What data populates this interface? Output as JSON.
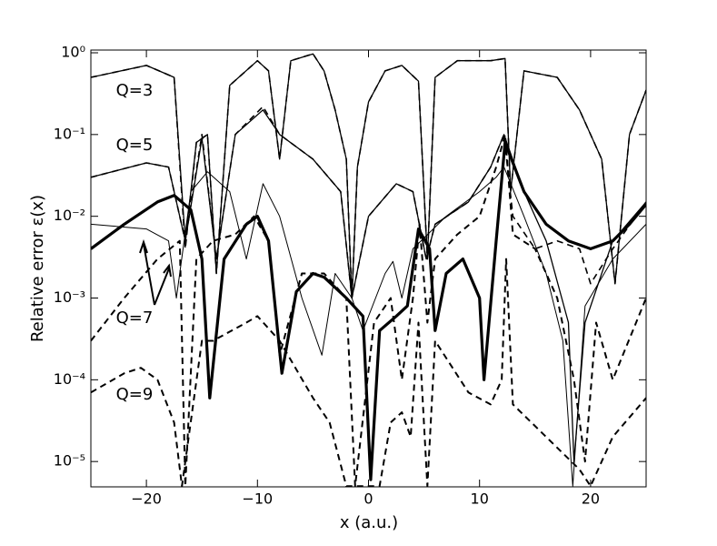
{
  "chart_data": {
    "type": "line",
    "x_label": "x (a.u.)",
    "y_label": "Relative error ε(x)",
    "annotations": [
      "Q=3",
      "Q=5",
      "Q=7",
      "Q=9"
    ],
    "xlim": [
      -25,
      25
    ],
    "xticks": [
      {
        "value": -20,
        "label": "−20"
      },
      {
        "value": -10,
        "label": "−10"
      },
      0,
      10,
      20
    ],
    "ylog": true,
    "ylim": [
      4.9e-06,
      1.08
    ],
    "yticks": [
      {
        "value": 1,
        "label": "10⁰"
      },
      {
        "value": 0.1,
        "label": "10⁻¹"
      },
      {
        "value": 0.01,
        "label": "10⁻²"
      },
      {
        "value": 0.001,
        "label": "10⁻³"
      },
      {
        "value": 0.0001,
        "label": "10⁻⁴"
      },
      {
        "value": 1e-05,
        "label": "10⁻⁵"
      }
    ],
    "series": [
      {
        "color": "#000000",
        "dashed": false,
        "width": 1.3,
        "x": [
          -25,
          -20,
          -17.5,
          -16.5,
          -15.5,
          -14.5,
          -13.7,
          -12.5,
          -10,
          -9,
          -8,
          -7,
          -5,
          -4,
          -3,
          -2,
          -1.5,
          -1,
          0,
          1.5,
          3,
          4.5,
          5.3,
          6,
          8,
          11,
          12.3,
          12.8,
          14,
          17,
          19,
          21,
          22.2,
          23.5,
          25
        ],
        "values": [
          0.5,
          0.7,
          0.5,
          0.005,
          0.08,
          0.1,
          0.002,
          0.4,
          0.8,
          0.6,
          0.05,
          0.8,
          0.97,
          0.6,
          0.2,
          0.05,
          0.001,
          0.04,
          0.25,
          0.6,
          0.7,
          0.45,
          0.003,
          0.5,
          0.8,
          0.8,
          0.85,
          0.02,
          0.6,
          0.5,
          0.2,
          0.05,
          0.0015,
          0.1,
          0.35
        ]
      },
      {
        "color": "#000000",
        "dashed": true,
        "width": 1.6,
        "x": [
          -25,
          -20,
          -17.5,
          -16.5,
          -15.5,
          -14.5,
          -13.7,
          -12.5,
          -10,
          -9,
          -8,
          -7,
          -5,
          -4,
          -3,
          -2,
          -1.5,
          -1,
          0,
          1.5,
          3,
          4.5,
          5.3,
          6,
          8,
          11,
          12.3,
          12.8,
          14,
          17,
          19,
          21,
          22.2,
          23.5,
          25
        ],
        "values": [
          0.5,
          0.7,
          0.5,
          0.004,
          0.08,
          0.1,
          0.002,
          0.4,
          0.8,
          0.6,
          0.05,
          0.8,
          0.97,
          0.6,
          0.2,
          0.05,
          0.001,
          0.04,
          0.25,
          0.6,
          0.7,
          0.45,
          0.003,
          0.5,
          0.8,
          0.8,
          0.85,
          0.02,
          0.6,
          0.5,
          0.2,
          0.05,
          0.0015,
          0.1,
          0.35
        ]
      },
      {
        "color": "#000000",
        "dashed": false,
        "width": 1.3,
        "x": [
          -25,
          -20,
          -18,
          -16.5,
          -15,
          -13.7,
          -12,
          -9.5,
          -8,
          -5,
          -2.5,
          -1.5,
          0,
          2.5,
          4,
          5.2,
          6,
          9,
          11,
          12.2,
          14,
          16,
          18,
          18.5,
          19.5,
          22,
          25
        ],
        "values": [
          0.03,
          0.045,
          0.04,
          0.005,
          0.09,
          0.003,
          0.1,
          0.2,
          0.1,
          0.05,
          0.02,
          0.001,
          0.01,
          0.025,
          0.02,
          0.003,
          0.008,
          0.015,
          0.04,
          0.1,
          0.02,
          0.005,
          0.0005,
          1e-05,
          0.0005,
          0.005,
          0.015
        ]
      },
      {
        "color": "#000000",
        "dashed": true,
        "width": 1.6,
        "x": [
          -25,
          -20,
          -18,
          -16.5,
          -15,
          -13.7,
          -12,
          -9.5,
          -8,
          -5,
          -2.5,
          -1.5,
          0,
          2.5,
          4,
          5.2,
          6,
          9,
          11,
          12.2,
          13,
          15,
          17,
          19,
          20,
          22,
          25
        ],
        "values": [
          0.03,
          0.045,
          0.04,
          0.005,
          0.1,
          0.003,
          0.1,
          0.22,
          0.1,
          0.05,
          0.02,
          0.001,
          0.01,
          0.025,
          0.02,
          0.003,
          0.008,
          0.015,
          0.04,
          0.1,
          0.01,
          0.004,
          0.005,
          0.004,
          0.0015,
          0.004,
          0.015
        ]
      },
      {
        "color": "#000000",
        "dashed": false,
        "width": 1,
        "x": [
          -25,
          -20,
          -18,
          -17.3,
          -16,
          -14.5,
          -12.5,
          -11,
          -9.5,
          -8,
          -6,
          -4.2,
          -3,
          -1.5,
          -0.5,
          1.5,
          2.2,
          3,
          4,
          7,
          10,
          11.5,
          12.2,
          14,
          16,
          17.5,
          18.4,
          19.5,
          22,
          25
        ],
        "values": [
          0.008,
          0.007,
          0.005,
          0.001,
          0.02,
          0.035,
          0.02,
          0.003,
          0.025,
          0.01,
          0.001,
          0.0002,
          0.002,
          0.001,
          0.0004,
          0.002,
          0.0028,
          0.001,
          0.004,
          0.01,
          0.02,
          0.03,
          0.04,
          0.01,
          0.002,
          0.0003,
          5e-06,
          0.0008,
          0.003,
          0.008
        ]
      },
      {
        "color": "#000000",
        "dashed": false,
        "width": 3.2,
        "x": [
          -25,
          -22,
          -19,
          -17.5,
          -16,
          -15,
          -14.3,
          -13,
          -11,
          -10,
          -9,
          -7.8,
          -6.5,
          -5,
          -4,
          -2,
          -0.5,
          0.2,
          1,
          2.5,
          3.5,
          4.5,
          5.5,
          6,
          7,
          8.5,
          10,
          10.4,
          11.5,
          12.3,
          14,
          16,
          18,
          20,
          22,
          23.5,
          25
        ],
        "values": [
          0.004,
          0.008,
          0.015,
          0.018,
          0.012,
          0.003,
          6e-05,
          0.003,
          0.008,
          0.01,
          0.005,
          0.00012,
          0.0012,
          0.002,
          0.0018,
          0.001,
          0.0006,
          6e-06,
          0.0004,
          0.0006,
          0.0008,
          0.007,
          0.004,
          0.0004,
          0.002,
          0.003,
          0.001,
          0.0001,
          0.005,
          0.08,
          0.02,
          0.008,
          0.005,
          0.004,
          0.005,
          0.008,
          0.014
        ]
      },
      {
        "color": "#000000",
        "dashed": true,
        "width": 2,
        "x": [
          -25,
          -22,
          -19,
          -17,
          -16.5,
          -15.5,
          -14,
          -12,
          -10.3,
          -9,
          -8,
          -6,
          -4,
          -2,
          -1.2,
          0.5,
          2,
          3,
          4,
          4.6,
          5.3,
          6,
          8,
          10,
          11.5,
          12.3,
          13,
          15,
          17,
          18.5,
          19.5,
          20.5,
          22,
          25
        ],
        "values": [
          0.0003,
          0.001,
          0.003,
          0.005,
          5e-06,
          0.003,
          0.005,
          0.006,
          0.01,
          0.005,
          0.0002,
          0.002,
          0.002,
          0.001,
          5e-06,
          0.0005,
          0.001,
          0.0001,
          0.001,
          0.008,
          0.0005,
          0.003,
          0.006,
          0.01,
          0.04,
          0.1,
          0.006,
          0.004,
          0.001,
          0.0001,
          1e-05,
          0.0005,
          0.0001,
          0.001
        ]
      },
      {
        "color": "#000000",
        "dashed": true,
        "width": 2,
        "x": [
          -25,
          -22,
          -20.5,
          -19,
          -17.5,
          -16.8,
          -15,
          -14,
          -11,
          -10,
          -8,
          -5,
          -3.5,
          -2,
          1,
          2,
          3,
          3.8,
          4.5,
          5.3,
          6,
          9,
          11,
          12,
          12.4,
          13,
          16,
          19,
          20,
          22,
          25
        ],
        "values": [
          7e-05,
          0.00012,
          0.00014,
          0.0001,
          3e-05,
          5e-06,
          0.0003,
          0.0003,
          0.0005,
          0.0006,
          0.0003,
          6e-05,
          3e-05,
          5e-06,
          5e-06,
          3e-05,
          4e-05,
          2e-05,
          0.0005,
          5e-06,
          0.0003,
          7e-05,
          5e-05,
          0.0001,
          0.003,
          5e-05,
          2e-05,
          8e-06,
          5e-06,
          2e-05,
          6e-05
        ]
      }
    ]
  }
}
